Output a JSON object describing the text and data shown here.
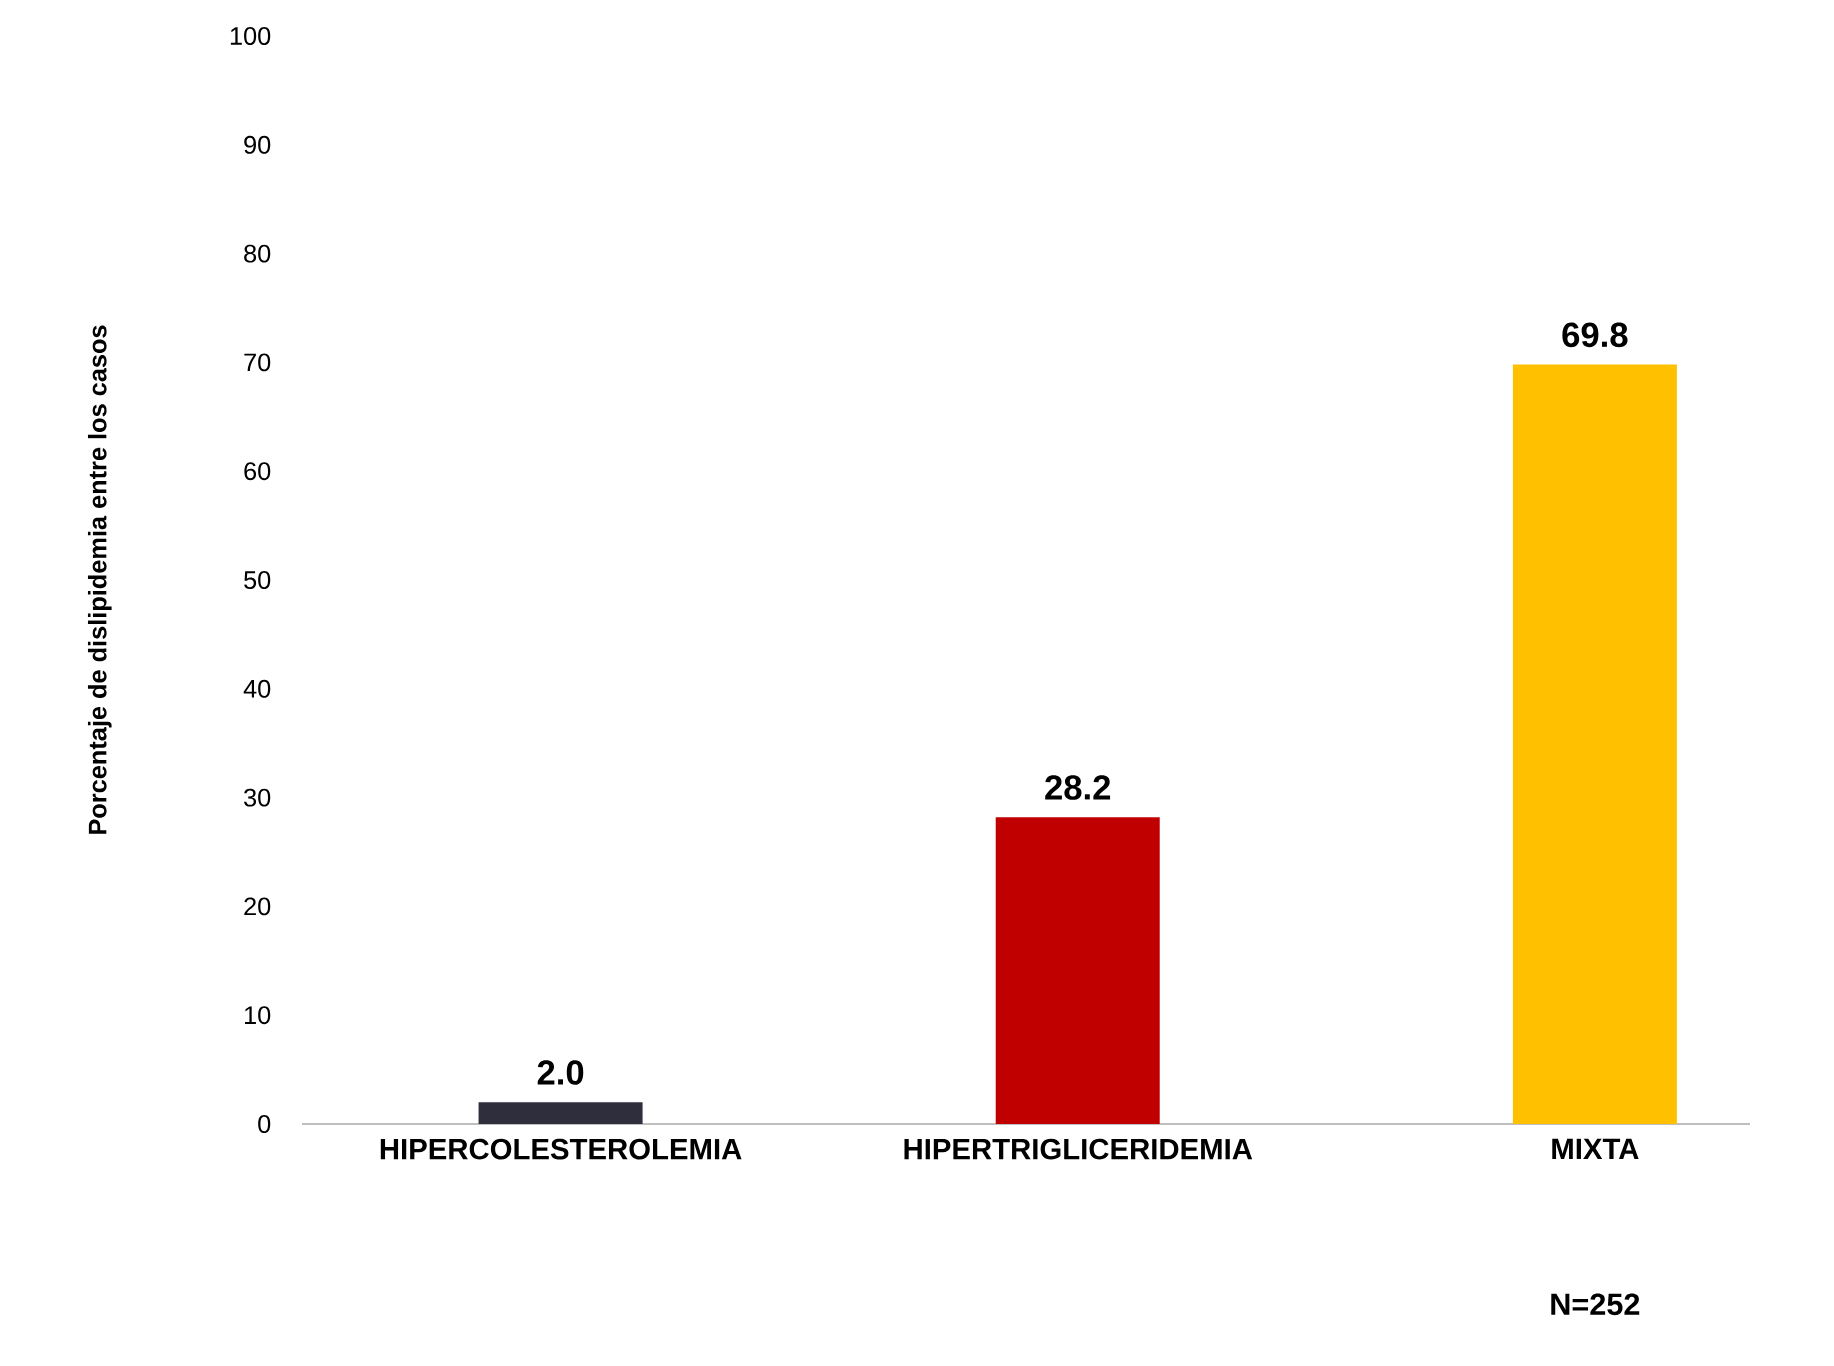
{
  "chart_data": {
    "type": "bar",
    "ylabel": "Porcentaje de dislipidemia entre los casos",
    "categories": [
      "HIPERCOLESTEROLEMIA",
      "HIPERTRIGLICERIDEMIA",
      "MIXTA"
    ],
    "values": [
      2.0,
      28.2,
      69.8
    ],
    "value_labels": [
      "2.0",
      "28.2",
      "69.8"
    ],
    "colors": [
      "#2e2e3c",
      "#c00000",
      "#ffc000"
    ],
    "ylim": [
      0,
      100
    ],
    "yticks": [
      0,
      10,
      20,
      30,
      40,
      50,
      60,
      70,
      80,
      90,
      100
    ],
    "grid": false,
    "annotations": [
      "N=252"
    ]
  }
}
